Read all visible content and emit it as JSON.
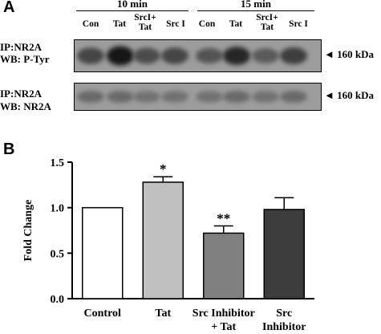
{
  "panel_a": {
    "letter": "A",
    "time_groups": [
      "10 min",
      "15 min"
    ],
    "lanes": [
      "Con",
      "Tat",
      "SrcI+\nTat",
      "Src I",
      "Con",
      "Tat",
      "SrcI+\nTat",
      "Src I"
    ],
    "blots": [
      {
        "ip": "IP:NR2A",
        "wb": "WB: P-Tyr",
        "marker": "◄ 160 kDa",
        "band_intensity": [
          0.55,
          0.85,
          0.5,
          0.55,
          0.45,
          0.75,
          0.4,
          0.6
        ]
      },
      {
        "ip": "IP:NR2A",
        "wb": "WB: NR2A",
        "marker": "◄ 160 kDa",
        "band_intensity": [
          0.3,
          0.3,
          0.25,
          0.25,
          0.25,
          0.3,
          0.25,
          0.3
        ]
      }
    ]
  },
  "chart_data": {
    "type": "bar",
    "panel_letter": "B",
    "categories": [
      "Control",
      "Tat",
      "Src Inhibitor\n+ Tat",
      "Src\nInhibitor"
    ],
    "values": [
      1.0,
      1.28,
      0.72,
      0.98
    ],
    "errors": [
      0,
      0.06,
      0.08,
      0.13
    ],
    "significance": [
      "",
      "*",
      "**",
      ""
    ],
    "bar_colors": [
      "#ffffff",
      "#c0c0c0",
      "#808080",
      "#3c3c3c"
    ],
    "ylabel": "Fold Change",
    "ylim": [
      0,
      1.5
    ],
    "yticks": [
      "0.0",
      "0.5",
      "1.0",
      "1.5"
    ],
    "grid": false
  }
}
